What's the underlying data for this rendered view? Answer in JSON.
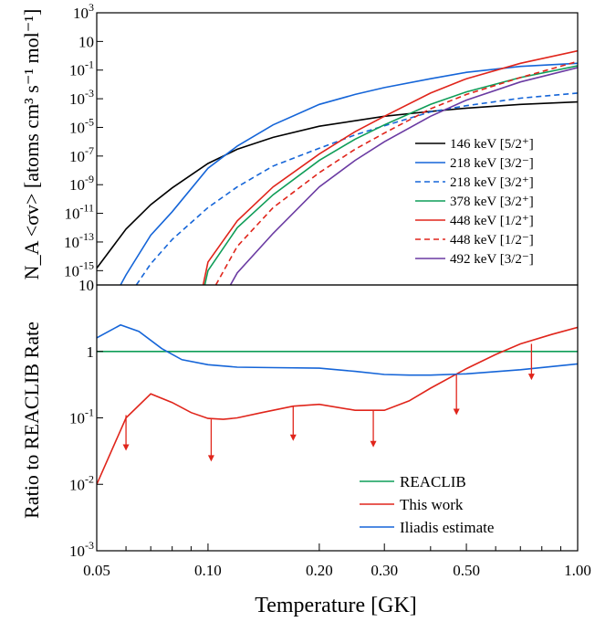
{
  "chart_data": [
    {
      "type": "line",
      "panel": "top",
      "ylabel": "N_A <σv> [atoms cm³ s⁻¹ mol⁻¹]",
      "yscale": "log",
      "xscale": "log",
      "xlim": [
        0.05,
        1.0
      ],
      "ylim": [
        1e-16,
        1000
      ],
      "y_ticks": [
        {
          "v": 1e-15,
          "base": "10",
          "exp": "-15"
        },
        {
          "v": 1e-13,
          "base": "10",
          "exp": "-13"
        },
        {
          "v": 1e-11,
          "base": "10",
          "exp": "-11"
        },
        {
          "v": 1e-09,
          "base": "10",
          "exp": "-9"
        },
        {
          "v": 1e-07,
          "base": "10",
          "exp": "-7"
        },
        {
          "v": 1e-05,
          "base": "10",
          "exp": "-5"
        },
        {
          "v": 0.001,
          "base": "10",
          "exp": "-3"
        },
        {
          "v": 0.1,
          "base": "10",
          "exp": "-1"
        },
        {
          "v": 10,
          "base": "10",
          "exp": ""
        },
        {
          "v": 1000,
          "base": "10",
          "exp": "3"
        }
      ],
      "legend_position": "right",
      "series": [
        {
          "name": "146 keV [5/2⁺]",
          "color": "#000000",
          "dash": "solid",
          "points": [
            [
              0.05,
              1.5e-15
            ],
            [
              0.06,
              8e-13
            ],
            [
              0.07,
              4e-11
            ],
            [
              0.08,
              6e-10
            ],
            [
              0.1,
              3e-08
            ],
            [
              0.12,
              3e-07
            ],
            [
              0.15,
              2e-06
            ],
            [
              0.2,
              1.2e-05
            ],
            [
              0.3,
              6e-05
            ],
            [
              0.4,
              0.00013
            ],
            [
              0.5,
              0.00022
            ],
            [
              0.7,
              0.0004
            ],
            [
              1.0,
              0.0006
            ]
          ]
        },
        {
          "name": "218 keV [3/2⁻]",
          "color": "#1565d8",
          "dash": "solid",
          "points": [
            [
              0.058,
              1e-16
            ],
            [
              0.06,
              5e-16
            ],
            [
              0.07,
              3e-13
            ],
            [
              0.08,
              1.3e-11
            ],
            [
              0.1,
              1.4e-08
            ],
            [
              0.12,
              5e-07
            ],
            [
              0.15,
              1.5e-05
            ],
            [
              0.2,
              0.0004
            ],
            [
              0.25,
              0.002
            ],
            [
              0.3,
              0.006
            ],
            [
              0.4,
              0.025
            ],
            [
              0.5,
              0.07
            ],
            [
              0.7,
              0.18
            ],
            [
              1.0,
              0.3
            ]
          ]
        },
        {
          "name": "218 keV [3/2⁺]",
          "color": "#1565d8",
          "dash": "dashed",
          "points": [
            [
              0.064,
              1e-16
            ],
            [
              0.07,
              3e-15
            ],
            [
              0.08,
              1.5e-13
            ],
            [
              0.1,
              2.5e-11
            ],
            [
              0.12,
              7e-10
            ],
            [
              0.15,
              2e-08
            ],
            [
              0.2,
              3.5e-07
            ],
            [
              0.25,
              3e-06
            ],
            [
              0.3,
              1.3e-05
            ],
            [
              0.4,
              0.00012
            ],
            [
              0.5,
              0.00033
            ],
            [
              0.7,
              0.0011
            ],
            [
              1.0,
              0.0025
            ]
          ]
        },
        {
          "name": "378 keV [3/2⁺]",
          "color": "#0f9d58",
          "dash": "solid",
          "points": [
            [
              0.098,
              1e-16
            ],
            [
              0.1,
              1e-15
            ],
            [
              0.12,
              1e-12
            ],
            [
              0.15,
              2e-10
            ],
            [
              0.2,
              5e-08
            ],
            [
              0.25,
              1.5e-06
            ],
            [
              0.3,
              1.5e-05
            ],
            [
              0.4,
              0.0004
            ],
            [
              0.5,
              0.003
            ],
            [
              0.7,
              0.03
            ],
            [
              1.0,
              0.2
            ]
          ]
        },
        {
          "name": "448 keV [1/2⁺]",
          "color": "#e0251b",
          "dash": "solid",
          "points": [
            [
              0.097,
              1e-16
            ],
            [
              0.1,
              4e-15
            ],
            [
              0.12,
              3e-12
            ],
            [
              0.15,
              7e-10
            ],
            [
              0.2,
              1.4e-07
            ],
            [
              0.25,
              5e-06
            ],
            [
              0.3,
              6e-05
            ],
            [
              0.4,
              0.0025
            ],
            [
              0.5,
              0.025
            ],
            [
              0.7,
              0.3
            ],
            [
              1.0,
              2.2
            ]
          ]
        },
        {
          "name": "448 keV [1/2⁻]",
          "color": "#e0251b",
          "dash": "dashed",
          "points": [
            [
              0.105,
              1e-16
            ],
            [
              0.12,
              5e-14
            ],
            [
              0.15,
              2.5e-11
            ],
            [
              0.2,
              7e-09
            ],
            [
              0.25,
              3e-07
            ],
            [
              0.3,
              4e-06
            ],
            [
              0.4,
              0.0002
            ],
            [
              0.5,
              0.002
            ],
            [
              0.7,
              0.03
            ],
            [
              1.0,
              0.4
            ]
          ]
        },
        {
          "name": "492 keV [3/2⁻]",
          "color": "#6a3aa2",
          "dash": "solid",
          "points": [
            [
              0.115,
              1e-16
            ],
            [
              0.12,
              7e-16
            ],
            [
              0.15,
              4e-13
            ],
            [
              0.2,
              7e-10
            ],
            [
              0.25,
              5e-08
            ],
            [
              0.3,
              1e-06
            ],
            [
              0.4,
              6e-05
            ],
            [
              0.5,
              0.0008
            ],
            [
              0.7,
              0.015
            ],
            [
              1.0,
              0.15
            ]
          ]
        }
      ]
    },
    {
      "type": "line",
      "panel": "bottom",
      "ylabel": "Ratio to REACLIB Rate",
      "xlabel": "Temperature [GK]",
      "yscale": "log",
      "xscale": "log",
      "xlim": [
        0.05,
        1.0
      ],
      "ylim": [
        0.001,
        10
      ],
      "y_ticks": [
        {
          "v": 10,
          "base": "10",
          "exp": ""
        },
        {
          "v": 1,
          "base": "1",
          "exp": ""
        },
        {
          "v": 0.1,
          "base": "10",
          "exp": "-1"
        },
        {
          "v": 0.01,
          "base": "10",
          "exp": "-2"
        },
        {
          "v": 0.001,
          "base": "10",
          "exp": "-3"
        }
      ],
      "x_ticks": [
        {
          "v": 0.05,
          "label": "0.05"
        },
        {
          "v": 0.1,
          "label": "0.10"
        },
        {
          "v": 0.2,
          "label": "0.20"
        },
        {
          "v": 0.3,
          "label": "0.30"
        },
        {
          "v": 0.5,
          "label": "0.50"
        },
        {
          "v": 1.0,
          "label": "1.00"
        }
      ],
      "x_minor_ticks": [
        0.06,
        0.07,
        0.08,
        0.09,
        0.4,
        0.6,
        0.7,
        0.8,
        0.9
      ],
      "legend_position": "bottom-right",
      "series": [
        {
          "name": "REACLIB",
          "color": "#0f9d58",
          "points": [
            [
              0.05,
              1
            ],
            [
              1.0,
              1
            ]
          ]
        },
        {
          "name": "This work",
          "color": "#e0251b",
          "points": [
            [
              0.05,
              0.01
            ],
            [
              0.06,
              0.1
            ],
            [
              0.07,
              0.23
            ],
            [
              0.08,
              0.17
            ],
            [
              0.09,
              0.12
            ],
            [
              0.1,
              0.098
            ],
            [
              0.11,
              0.095
            ],
            [
              0.12,
              0.1
            ],
            [
              0.14,
              0.12
            ],
            [
              0.17,
              0.15
            ],
            [
              0.2,
              0.16
            ],
            [
              0.25,
              0.13
            ],
            [
              0.3,
              0.13
            ],
            [
              0.35,
              0.18
            ],
            [
              0.4,
              0.28
            ],
            [
              0.5,
              0.55
            ],
            [
              0.6,
              0.9
            ],
            [
              0.7,
              1.3
            ],
            [
              0.85,
              1.8
            ],
            [
              1.0,
              2.3
            ]
          ]
        },
        {
          "name": "Iliadis estimate",
          "color": "#1565d8",
          "points": [
            [
              0.05,
              1.6
            ],
            [
              0.058,
              2.5
            ],
            [
              0.065,
              2.0
            ],
            [
              0.075,
              1.1
            ],
            [
              0.085,
              0.75
            ],
            [
              0.1,
              0.63
            ],
            [
              0.12,
              0.58
            ],
            [
              0.15,
              0.57
            ],
            [
              0.2,
              0.56
            ],
            [
              0.25,
              0.5
            ],
            [
              0.3,
              0.45
            ],
            [
              0.35,
              0.44
            ],
            [
              0.4,
              0.44
            ],
            [
              0.5,
              0.46
            ],
            [
              0.7,
              0.53
            ],
            [
              1.0,
              0.65
            ]
          ]
        }
      ],
      "upper_limit_arrows": [
        {
          "x": 0.06,
          "y_from": 0.11,
          "y_to": 0.032
        },
        {
          "x": 0.102,
          "y_from": 0.095,
          "y_to": 0.022
        },
        {
          "x": 0.17,
          "y_from": 0.15,
          "y_to": 0.045
        },
        {
          "x": 0.28,
          "y_from": 0.13,
          "y_to": 0.036
        },
        {
          "x": 0.47,
          "y_from": 0.45,
          "y_to": 0.11
        },
        {
          "x": 0.75,
          "y_from": 1.3,
          "y_to": 0.37
        }
      ]
    }
  ]
}
